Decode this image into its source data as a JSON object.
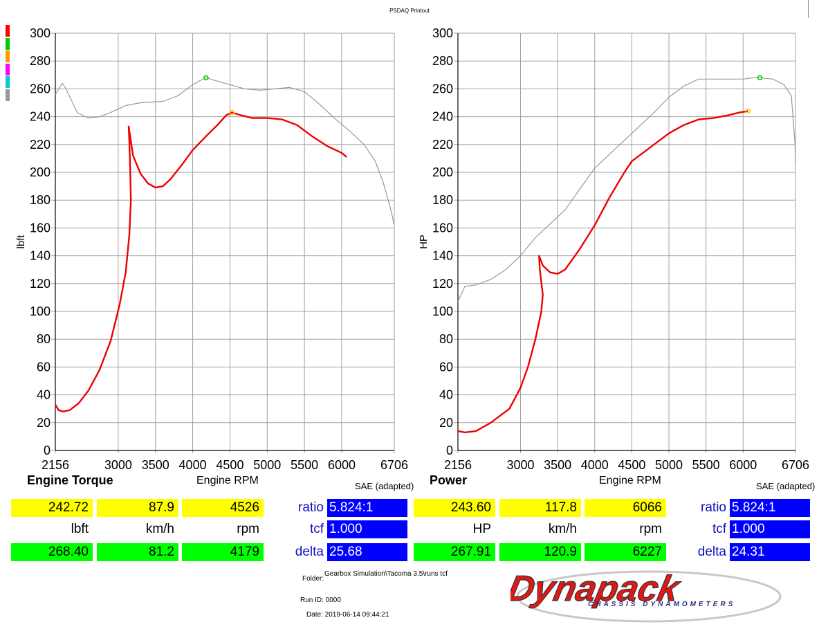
{
  "header": {
    "title": "PSDAQ Printout"
  },
  "legend_colors": [
    "#ff0000",
    "#00cc00",
    "#ff9900",
    "#ff00ff",
    "#00cccc",
    "#999999"
  ],
  "chart_data": [
    {
      "type": "line",
      "title": "Engine Torque",
      "xlabel": "Engine RPM",
      "ylabel": "lbft",
      "note": "SAE (adapted)",
      "xlim": [
        2156,
        6706
      ],
      "ylim": [
        0,
        300
      ],
      "x_ticks": [
        2156,
        3000,
        3500,
        4000,
        4500,
        5000,
        5500,
        6000,
        6706
      ],
      "y_ticks": [
        0,
        20,
        40,
        60,
        80,
        100,
        120,
        140,
        160,
        180,
        200,
        220,
        240,
        260,
        280,
        300
      ],
      "grid": true,
      "series": [
        {
          "color": "#ee0000",
          "points": [
            [
              2156,
              33
            ],
            [
              2200,
              29
            ],
            [
              2260,
              28
            ],
            [
              2350,
              29
            ],
            [
              2470,
              34
            ],
            [
              2600,
              43
            ],
            [
              2750,
              58
            ],
            [
              2900,
              79
            ],
            [
              3020,
              105
            ],
            [
              3100,
              128
            ],
            [
              3150,
              155
            ],
            [
              3170,
              180
            ],
            [
              3160,
              205
            ],
            [
              3150,
              222
            ],
            [
              3140,
              233
            ],
            [
              3200,
              212
            ],
            [
              3300,
              199
            ],
            [
              3400,
              192
            ],
            [
              3500,
              189
            ],
            [
              3600,
              190
            ],
            [
              3700,
              195
            ],
            [
              3850,
              205
            ],
            [
              4000,
              216
            ],
            [
              4200,
              227
            ],
            [
              4350,
              235
            ],
            [
              4450,
              241
            ],
            [
              4526,
              243
            ],
            [
              4650,
              241
            ],
            [
              4800,
              239
            ],
            [
              5000,
              239
            ],
            [
              5200,
              238
            ],
            [
              5400,
              234
            ],
            [
              5600,
              226
            ],
            [
              5800,
              219
            ],
            [
              6000,
              214
            ],
            [
              6066,
              211
            ]
          ]
        },
        {
          "color": "#999999",
          "points": [
            [
              2156,
              256
            ],
            [
              2250,
              264
            ],
            [
              2300,
              260
            ],
            [
              2450,
              243
            ],
            [
              2600,
              239
            ],
            [
              2750,
              240
            ],
            [
              2900,
              243
            ],
            [
              3100,
              248
            ],
            [
              3300,
              250
            ],
            [
              3600,
              251
            ],
            [
              3800,
              255
            ],
            [
              4000,
              263
            ],
            [
              4100,
              266
            ],
            [
              4179,
              268
            ],
            [
              4300,
              266
            ],
            [
              4500,
              263
            ],
            [
              4700,
              260
            ],
            [
              4900,
              259
            ],
            [
              5100,
              260
            ],
            [
              5300,
              261
            ],
            [
              5500,
              258
            ],
            [
              5700,
              249
            ],
            [
              5900,
              239
            ],
            [
              6100,
              230
            ],
            [
              6300,
              220
            ],
            [
              6450,
              208
            ],
            [
              6550,
              194
            ],
            [
              6650,
              175
            ],
            [
              6706,
              162
            ]
          ]
        }
      ],
      "markers": [
        {
          "x": 4526,
          "y": 243,
          "color": "#ffcc00"
        },
        {
          "x": 4179,
          "y": 268,
          "color": "#00cc00"
        }
      ]
    },
    {
      "type": "line",
      "title": "Power",
      "xlabel": "Engine RPM",
      "ylabel": "HP",
      "note": "SAE (adapted)",
      "xlim": [
        2156,
        6706
      ],
      "ylim": [
        0,
        300
      ],
      "x_ticks": [
        2156,
        3000,
        3500,
        4000,
        4500,
        5000,
        5500,
        6000,
        6706
      ],
      "y_ticks": [
        0,
        20,
        40,
        60,
        80,
        100,
        120,
        140,
        160,
        180,
        200,
        220,
        240,
        260,
        280,
        300
      ],
      "grid": true,
      "series": [
        {
          "color": "#ee0000",
          "points": [
            [
              2156,
              14
            ],
            [
              2250,
              13
            ],
            [
              2400,
              14
            ],
            [
              2600,
              20
            ],
            [
              2850,
              30
            ],
            [
              3000,
              45
            ],
            [
              3100,
              60
            ],
            [
              3200,
              80
            ],
            [
              3280,
              100
            ],
            [
              3300,
              112
            ],
            [
              3260,
              130
            ],
            [
              3250,
              140
            ],
            [
              3300,
              133
            ],
            [
              3400,
              128
            ],
            [
              3500,
              127
            ],
            [
              3600,
              130
            ],
            [
              3800,
              145
            ],
            [
              4000,
              162
            ],
            [
              4200,
              182
            ],
            [
              4400,
              200
            ],
            [
              4500,
              208
            ],
            [
              4650,
              214
            ],
            [
              4800,
              220
            ],
            [
              5000,
              228
            ],
            [
              5200,
              234
            ],
            [
              5400,
              238
            ],
            [
              5600,
              239
            ],
            [
              5800,
              241
            ],
            [
              5950,
              243
            ],
            [
              6066,
              244
            ]
          ]
        },
        {
          "color": "#999999",
          "points": [
            [
              2156,
              107
            ],
            [
              2250,
              118
            ],
            [
              2400,
              119
            ],
            [
              2600,
              123
            ],
            [
              2800,
              130
            ],
            [
              3000,
              140
            ],
            [
              3200,
              153
            ],
            [
              3400,
              163
            ],
            [
              3600,
              173
            ],
            [
              3800,
              188
            ],
            [
              4000,
              203
            ],
            [
              4200,
              213
            ],
            [
              4400,
              223
            ],
            [
              4600,
              233
            ],
            [
              4800,
              243
            ],
            [
              5000,
              254
            ],
            [
              5200,
              262
            ],
            [
              5400,
              267
            ],
            [
              5600,
              267
            ],
            [
              5800,
              267
            ],
            [
              6000,
              267
            ],
            [
              6150,
              268
            ],
            [
              6227,
              268
            ],
            [
              6400,
              267
            ],
            [
              6550,
              263
            ],
            [
              6650,
              255
            ],
            [
              6700,
              220
            ],
            [
              6706,
              206
            ]
          ]
        }
      ],
      "markers": [
        {
          "x": 6066,
          "y": 244,
          "color": "#ffcc00"
        },
        {
          "x": 6227,
          "y": 268,
          "color": "#00cc00"
        }
      ]
    }
  ],
  "left_panel": {
    "title": "Engine Torque",
    "xlabel": "Engine RPM",
    "note": "SAE (adapted)",
    "current": {
      "value": "242.72",
      "speed": "87.9",
      "rpm": "4526"
    },
    "units": {
      "value": "lbft",
      "speed": "km/h",
      "rpm": "rpm"
    },
    "reference": {
      "value": "268.40",
      "speed": "81.2",
      "rpm": "4179"
    },
    "ratio_label": "ratio",
    "ratio": "5.824:1",
    "tcf_label": "tcf",
    "tcf": "1.000",
    "delta_label": "delta",
    "delta": "25.68"
  },
  "right_panel": {
    "title": "Power",
    "xlabel": "Engine RPM",
    "note": "SAE (adapted)",
    "current": {
      "value": "243.60",
      "speed": "117.8",
      "rpm": "6066"
    },
    "units": {
      "value": "HP",
      "speed": "km/h",
      "rpm": "rpm"
    },
    "reference": {
      "value": "267.91",
      "speed": "120.9",
      "rpm": "6227"
    },
    "ratio_label": "ratio",
    "ratio": "5.824:1",
    "tcf_label": "tcf",
    "tcf": "1.000",
    "delta_label": "delta",
    "delta": "24.31"
  },
  "footer": {
    "folder_label": "Folder:",
    "folder": "Gearbox Simulation\\Tacoma 3.5\\runs tcf",
    "run_id": "Run ID: 0000",
    "date": "Date: 2019-06-14 09:44:21",
    "logo_text": "Dynapack",
    "logo_subtext": "CHASSIS DYNAMOMETERS"
  }
}
